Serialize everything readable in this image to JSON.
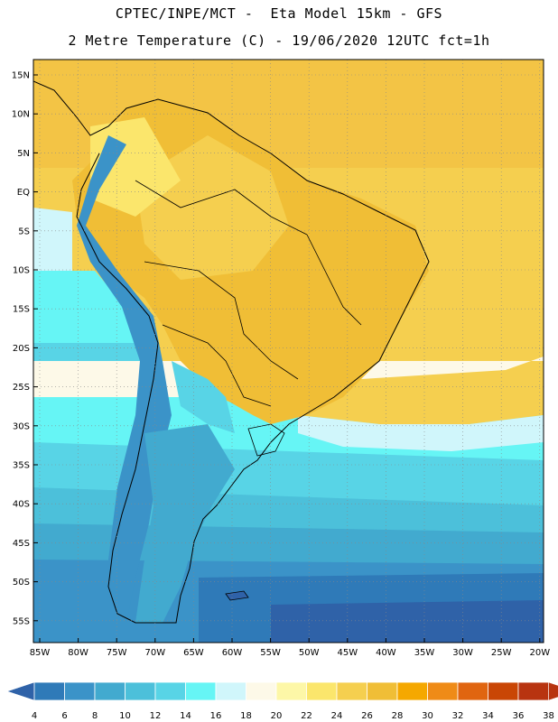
{
  "header": {
    "line1": "CPTEC/INPE/MCT -  Eta Model 15km - GFS",
    "line2": "2 Metre Temperature (C) - 19/06/2020 12UTC fct=1h"
  },
  "lat_labels": [
    "15N",
    "10N",
    "5N",
    "EQ",
    "5S",
    "10S",
    "15S",
    "20S",
    "25S",
    "30S",
    "35S",
    "40S",
    "45S",
    "50S",
    "55S"
  ],
  "lon_labels": [
    "85W",
    "80W",
    "75W",
    "70W",
    "65W",
    "60W",
    "55W",
    "50W",
    "45W",
    "40W",
    "35W",
    "30W",
    "25W",
    "20W"
  ],
  "colorbar": {
    "ticks": [
      "4",
      "6",
      "8",
      "10",
      "12",
      "14",
      "16",
      "18",
      "20",
      "22",
      "24",
      "26",
      "28",
      "30",
      "32",
      "34",
      "36",
      "38"
    ],
    "colors": [
      "#2f62a8",
      "#2f7ab8",
      "#3b93c8",
      "#42aacf",
      "#4cc0da",
      "#58d4e6",
      "#66f5f5",
      "#d0f6fb",
      "#fdf9e8",
      "#fdf7a7",
      "#fbe66c",
      "#f5cf4f",
      "#f0be36",
      "#f5a800",
      "#ef8b17",
      "#e06510",
      "#c94605",
      "#b83410"
    ]
  }
}
